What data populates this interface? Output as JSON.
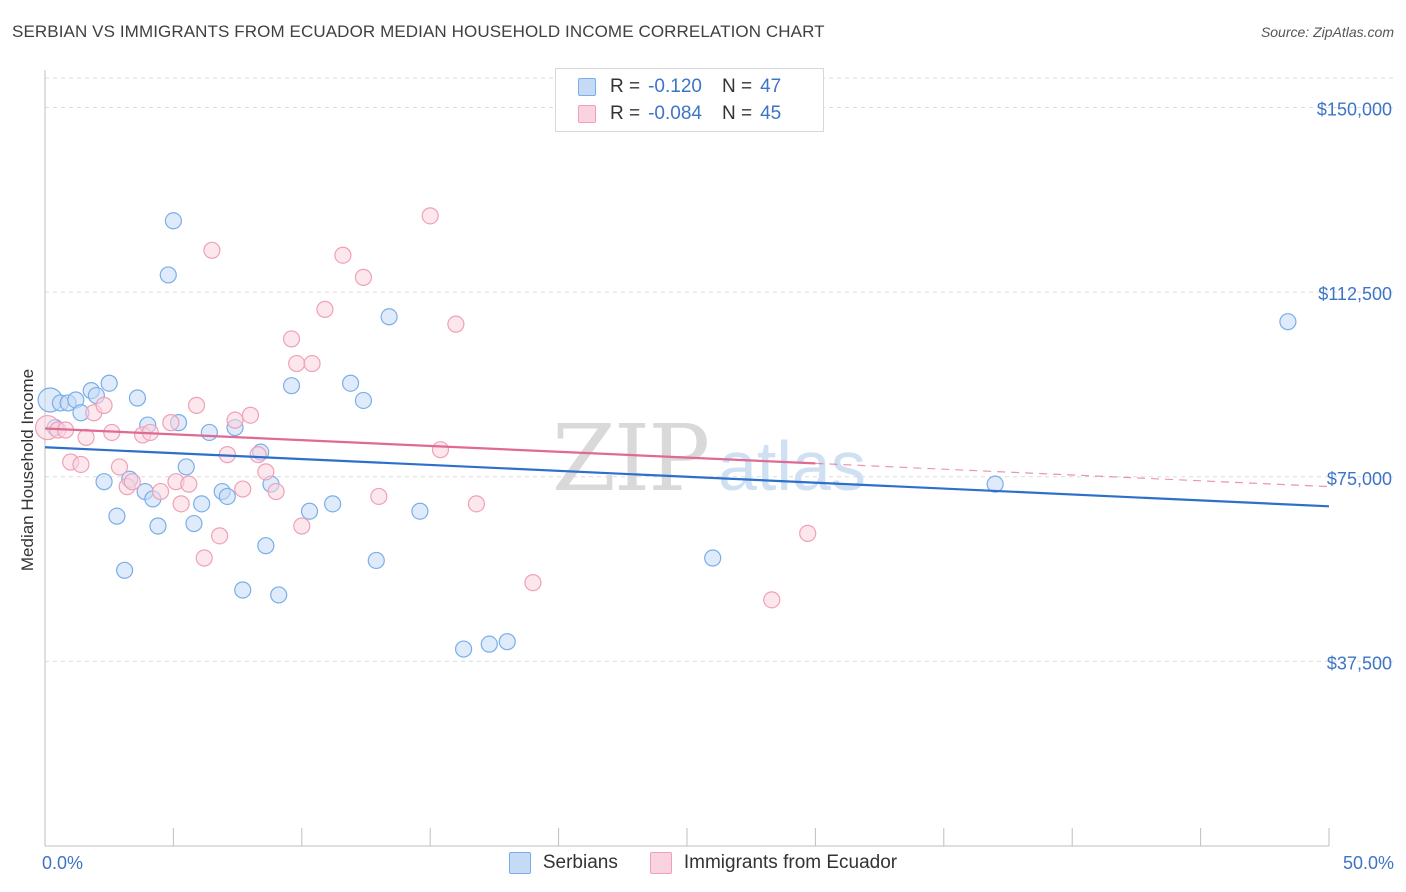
{
  "title": "SERBIAN VS IMMIGRANTS FROM ECUADOR MEDIAN HOUSEHOLD INCOME CORRELATION CHART",
  "source": "Source: ZipAtlas.com",
  "colors": {
    "serbians": "#7aaee8",
    "serbians_fill": "#c4daf5",
    "serbians_line": "#2d6fcb",
    "ecuador": "#f0a0b8",
    "ecuador_fill": "#f9d3df",
    "ecuador_line": "#e06a92",
    "axis_text": "#3e74c8"
  },
  "legend": {
    "rows": [
      {
        "r_label": "R =",
        "r_value": "-0.120",
        "n_label": "N =",
        "n_value": "47"
      },
      {
        "r_label": "R =",
        "r_value": "-0.084",
        "n_label": "N =",
        "n_value": "45"
      }
    ]
  },
  "bottom_legend": [
    "Serbians",
    "Immigrants from Ecuador"
  ],
  "watermark": {
    "zip": "ZIP",
    "atlas": "atlas"
  },
  "chart_data": {
    "type": "scatter",
    "title": "SERBIAN VS IMMIGRANTS FROM ECUADOR MEDIAN HOUSEHOLD INCOME CORRELATION CHART",
    "xlabel": "",
    "ylabel": "Median Household Income",
    "xlim": [
      0,
      50
    ],
    "ylim": [
      0,
      156000
    ],
    "x_tick_labels": [
      "0.0%",
      "50.0%"
    ],
    "y_ticks": [
      37500,
      75000,
      112500,
      150000
    ],
    "y_tick_labels": [
      "$37,500",
      "$75,000",
      "$112,500",
      "$150,000"
    ],
    "grid": true,
    "series": [
      {
        "name": "Serbians",
        "r": -0.12,
        "n": 47,
        "trend": {
          "x": [
            0,
            50
          ],
          "y": [
            81000,
            69000
          ],
          "dashed_from": null
        },
        "points": [
          [
            0.2,
            90600
          ],
          [
            0.4,
            85000
          ],
          [
            0.6,
            90000
          ],
          [
            0.9,
            90000
          ],
          [
            1.2,
            90600
          ],
          [
            1.4,
            88000
          ],
          [
            1.8,
            92500
          ],
          [
            2.0,
            91500
          ],
          [
            2.5,
            94000
          ],
          [
            2.3,
            74000
          ],
          [
            2.8,
            67000
          ],
          [
            3.1,
            56000
          ],
          [
            3.3,
            74500
          ],
          [
            3.6,
            91000
          ],
          [
            3.9,
            72000
          ],
          [
            4.0,
            85500
          ],
          [
            4.2,
            70500
          ],
          [
            4.4,
            65000
          ],
          [
            4.8,
            116000
          ],
          [
            5.0,
            127000
          ],
          [
            5.2,
            86000
          ],
          [
            5.5,
            77000
          ],
          [
            5.8,
            65500
          ],
          [
            6.1,
            69500
          ],
          [
            6.4,
            84000
          ],
          [
            6.9,
            72000
          ],
          [
            7.1,
            71000
          ],
          [
            7.4,
            85000
          ],
          [
            7.7,
            52000
          ],
          [
            8.4,
            80000
          ],
          [
            8.6,
            61000
          ],
          [
            8.8,
            73500
          ],
          [
            9.1,
            51000
          ],
          [
            9.6,
            93500
          ],
          [
            10.3,
            68000
          ],
          [
            11.2,
            69500
          ],
          [
            11.9,
            94000
          ],
          [
            12.4,
            90500
          ],
          [
            12.9,
            58000
          ],
          [
            13.4,
            107500
          ],
          [
            14.6,
            68000
          ],
          [
            16.3,
            40000
          ],
          [
            17.3,
            41000
          ],
          [
            18.0,
            41500
          ],
          [
            26.0,
            58500
          ],
          [
            37.0,
            73500
          ],
          [
            48.4,
            106500
          ]
        ]
      },
      {
        "name": "Immigrants from Ecuador",
        "r": -0.084,
        "n": 45,
        "trend": {
          "x": [
            0,
            50
          ],
          "y": [
            84800,
            73000
          ],
          "dashed_from": 30
        },
        "points": [
          [
            0.1,
            85000
          ],
          [
            0.5,
            84500
          ],
          [
            0.8,
            84500
          ],
          [
            1.0,
            78000
          ],
          [
            1.4,
            77500
          ],
          [
            1.6,
            83000
          ],
          [
            1.9,
            88000
          ],
          [
            2.3,
            89500
          ],
          [
            2.6,
            84000
          ],
          [
            2.9,
            77000
          ],
          [
            3.2,
            73000
          ],
          [
            3.4,
            74000
          ],
          [
            3.8,
            83500
          ],
          [
            4.1,
            84000
          ],
          [
            4.5,
            72000
          ],
          [
            4.9,
            86000
          ],
          [
            5.1,
            74000
          ],
          [
            5.3,
            69500
          ],
          [
            5.6,
            73500
          ],
          [
            5.9,
            89500
          ],
          [
            6.2,
            58500
          ],
          [
            6.5,
            121000
          ],
          [
            6.8,
            63000
          ],
          [
            7.1,
            79500
          ],
          [
            7.4,
            86500
          ],
          [
            7.7,
            72500
          ],
          [
            8.0,
            87500
          ],
          [
            8.3,
            79500
          ],
          [
            8.6,
            76000
          ],
          [
            9.0,
            72000
          ],
          [
            9.6,
            103000
          ],
          [
            9.8,
            98000
          ],
          [
            10.0,
            65000
          ],
          [
            10.4,
            98000
          ],
          [
            10.9,
            109000
          ],
          [
            11.6,
            120000
          ],
          [
            12.4,
            115500
          ],
          [
            13.0,
            71000
          ],
          [
            15.0,
            128000
          ],
          [
            15.4,
            80500
          ],
          [
            16.0,
            106000
          ],
          [
            16.8,
            69500
          ],
          [
            19.0,
            53500
          ],
          [
            28.3,
            50000
          ],
          [
            29.7,
            63500
          ]
        ]
      }
    ]
  }
}
